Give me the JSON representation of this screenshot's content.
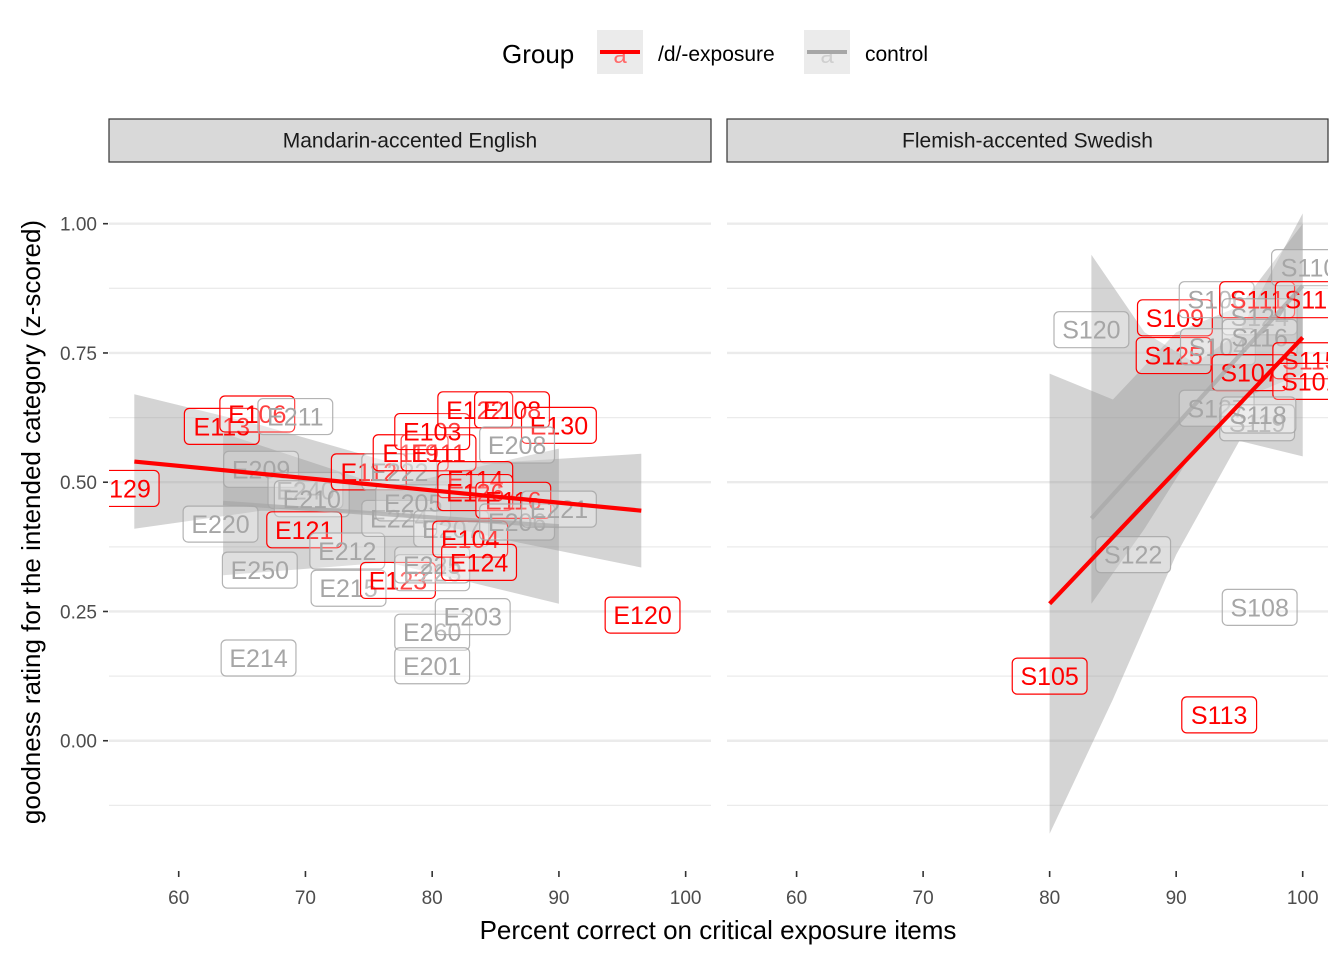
{
  "chart_data": {
    "type": "scatter",
    "xlabel": "Percent correct on critical exposure items",
    "ylabel": "goodness rating for the intended category (z-scored)",
    "legend": {
      "title": "Group",
      "placement": "top",
      "entries": [
        "/d/-exposure",
        "control"
      ],
      "glyph": "a"
    },
    "colors": {
      "/d/-exposure": "#ff0000",
      "control": "#a6a6a6"
    },
    "grid": true,
    "panels": [
      {
        "strip": "Mandarin-accented English",
        "xlim": [
          54.5,
          102
        ],
        "ylim": [
          -0.25,
          1.1
        ],
        "x_ticks": [
          60,
          70,
          80,
          90,
          100
        ],
        "y_ticks": [
          0.0,
          0.25,
          0.5,
          0.75,
          1.0
        ],
        "y_tick_labels": [
          "0.00",
          "0.25",
          "0.50",
          "0.75",
          "1.00"
        ],
        "points": [
          {
            "label": "E129",
            "x": 55.5,
            "y": 0.488,
            "group": "/d/-exposure"
          },
          {
            "label": "E113",
            "x": 63.4,
            "y": 0.608,
            "group": "/d/-exposure"
          },
          {
            "label": "E106",
            "x": 66.2,
            "y": 0.632,
            "group": "/d/-exposure"
          },
          {
            "label": "E211",
            "x": 69.2,
            "y": 0.627,
            "group": "control"
          },
          {
            "label": "E209",
            "x": 66.5,
            "y": 0.525,
            "group": "control"
          },
          {
            "label": "E240",
            "x": 70.0,
            "y": 0.484,
            "group": "control"
          },
          {
            "label": "E210",
            "x": 70.5,
            "y": 0.468,
            "group": "control"
          },
          {
            "label": "E220",
            "x": 63.3,
            "y": 0.419,
            "group": "control"
          },
          {
            "label": "E121",
            "x": 69.9,
            "y": 0.408,
            "group": "/d/-exposure"
          },
          {
            "label": "E212",
            "x": 73.3,
            "y": 0.367,
            "group": "control"
          },
          {
            "label": "E250",
            "x": 66.4,
            "y": 0.33,
            "group": "control"
          },
          {
            "label": "E215",
            "x": 73.4,
            "y": 0.295,
            "group": "control"
          },
          {
            "label": "E214",
            "x": 66.3,
            "y": 0.16,
            "group": "control"
          },
          {
            "label": "E112",
            "x": 75.0,
            "y": 0.52,
            "group": "/d/-exposure"
          },
          {
            "label": "E222",
            "x": 77.4,
            "y": 0.52,
            "group": "control"
          },
          {
            "label": "E224",
            "x": 77.4,
            "y": 0.43,
            "group": "control"
          },
          {
            "label": "E119",
            "x": 78.3,
            "y": 0.557,
            "group": "/d/-exposure"
          },
          {
            "label": "E111",
            "x": 80.5,
            "y": 0.557,
            "group": "/d/-exposure"
          },
          {
            "label": "E103",
            "x": 80.0,
            "y": 0.598,
            "group": "/d/-exposure"
          },
          {
            "label": "E205",
            "x": 78.5,
            "y": 0.46,
            "group": "control"
          },
          {
            "label": "E123",
            "x": 77.3,
            "y": 0.31,
            "group": "/d/-exposure"
          },
          {
            "label": "E223",
            "x": 80.0,
            "y": 0.325,
            "group": "control"
          },
          {
            "label": "E225",
            "x": 80.0,
            "y": 0.34,
            "group": "control"
          },
          {
            "label": "E260",
            "x": 80.0,
            "y": 0.21,
            "group": "control"
          },
          {
            "label": "E201",
            "x": 80.0,
            "y": 0.145,
            "group": "control"
          },
          {
            "label": "E207",
            "x": 81.5,
            "y": 0.41,
            "group": "control"
          },
          {
            "label": "E203",
            "x": 83.2,
            "y": 0.24,
            "group": "control"
          },
          {
            "label": "E122",
            "x": 83.4,
            "y": 0.64,
            "group": "/d/-exposure"
          },
          {
            "label": "E108",
            "x": 86.3,
            "y": 0.64,
            "group": "/d/-exposure"
          },
          {
            "label": "E130",
            "x": 90.0,
            "y": 0.61,
            "group": "/d/-exposure"
          },
          {
            "label": "E208",
            "x": 86.7,
            "y": 0.572,
            "group": "control"
          },
          {
            "label": "E114",
            "x": 83.4,
            "y": 0.505,
            "group": "/d/-exposure"
          },
          {
            "label": "E126",
            "x": 83.4,
            "y": 0.48,
            "group": "/d/-exposure"
          },
          {
            "label": "E116",
            "x": 86.4,
            "y": 0.465,
            "group": "/d/-exposure"
          },
          {
            "label": "E104",
            "x": 83.0,
            "y": 0.39,
            "group": "/d/-exposure"
          },
          {
            "label": "E124",
            "x": 83.7,
            "y": 0.345,
            "group": "/d/-exposure"
          },
          {
            "label": "E206",
            "x": 86.7,
            "y": 0.423,
            "group": "control"
          },
          {
            "label": "E221",
            "x": 90.0,
            "y": 0.448,
            "group": "control"
          },
          {
            "label": "E120",
            "x": 96.6,
            "y": 0.243,
            "group": "/d/-exposure"
          }
        ],
        "fits": [
          {
            "group": "/d/-exposure",
            "x": [
              56.5,
              96.5
            ],
            "y": [
              0.54,
              0.445
            ],
            "ci_x": [
              56.5,
              66.5,
              76.5,
              86.5,
              96.5
            ],
            "ci_lo": [
              0.41,
              0.445,
              0.44,
              0.385,
              0.335
            ],
            "ci_hi": [
              0.67,
              0.61,
              0.54,
              0.54,
              0.555
            ]
          },
          {
            "group": "control",
            "x": [
              63.5,
              90.0
            ],
            "y": [
              0.46,
              0.415
            ],
            "ci_x": [
              63.5,
              76.5,
              90.0
            ],
            "ci_lo": [
              0.32,
              0.345,
              0.265
            ],
            "ci_hi": [
              0.595,
              0.49,
              0.565
            ]
          }
        ]
      },
      {
        "strip": "Flemish-accented Swedish",
        "xlim": [
          54.5,
          102
        ],
        "ylim": [
          -0.25,
          1.1
        ],
        "x_ticks": [
          60,
          70,
          80,
          90,
          100
        ],
        "y_ticks": [
          0.0,
          0.25,
          0.5,
          0.75,
          1.0
        ],
        "points": [
          {
            "label": "S120",
            "x": 83.3,
            "y": 0.795,
            "group": "control"
          },
          {
            "label": "S109",
            "x": 89.9,
            "y": 0.818,
            "group": "/d/-exposure"
          },
          {
            "label": "S125",
            "x": 89.8,
            "y": 0.745,
            "group": "/d/-exposure"
          },
          {
            "label": "S106",
            "x": 93.2,
            "y": 0.853,
            "group": "control"
          },
          {
            "label": "S111",
            "x": 96.4,
            "y": 0.853,
            "group": "/d/-exposure"
          },
          {
            "label": "S124",
            "x": 96.6,
            "y": 0.82,
            "group": "control"
          },
          {
            "label": "S104",
            "x": 93.3,
            "y": 0.762,
            "group": "control"
          },
          {
            "label": "S116",
            "x": 96.6,
            "y": 0.78,
            "group": "control"
          },
          {
            "label": "S110",
            "x": 100.5,
            "y": 0.915,
            "group": "control"
          },
          {
            "label": "S117",
            "x": 100.8,
            "y": 0.853,
            "group": "/d/-exposure"
          },
          {
            "label": "S107",
            "x": 95.8,
            "y": 0.712,
            "group": "/d/-exposure"
          },
          {
            "label": "S115",
            "x": 100.6,
            "y": 0.735,
            "group": "/d/-exposure"
          },
          {
            "label": "S101",
            "x": 100.6,
            "y": 0.695,
            "group": "/d/-exposure"
          },
          {
            "label": "S127",
            "x": 93.2,
            "y": 0.643,
            "group": "control"
          },
          {
            "label": "S119",
            "x": 96.4,
            "y": 0.615,
            "group": "control"
          },
          {
            "label": "S118",
            "x": 96.5,
            "y": 0.63,
            "group": "control"
          },
          {
            "label": "S122",
            "x": 86.6,
            "y": 0.36,
            "group": "control"
          },
          {
            "label": "S108",
            "x": 96.6,
            "y": 0.258,
            "group": "control"
          },
          {
            "label": "S105",
            "x": 80.0,
            "y": 0.125,
            "group": "/d/-exposure"
          },
          {
            "label": "S113",
            "x": 93.4,
            "y": 0.05,
            "group": "/d/-exposure"
          }
        ],
        "fits": [
          {
            "group": "/d/-exposure",
            "x": [
              80.0,
              100.0
            ],
            "y": [
              0.265,
              0.78
            ],
            "ci_x": [
              80.0,
              85.0,
              90.0,
              95.0,
              100.0
            ],
            "ci_lo": [
              -0.18,
              0.08,
              0.36,
              0.58,
              0.55
            ],
            "ci_hi": [
              0.71,
              0.66,
              0.79,
              0.84,
              1.0
            ]
          },
          {
            "group": "control",
            "x": [
              83.3,
              100.0
            ],
            "y": [
              0.43,
              0.88
            ],
            "ci_x": [
              83.3,
              87.5,
              91.5,
              95.0,
              100.0
            ],
            "ci_lo": [
              0.265,
              0.41,
              0.565,
              0.66,
              0.71
            ],
            "ci_hi": [
              0.94,
              0.79,
              0.73,
              0.79,
              1.02
            ]
          }
        ]
      }
    ]
  }
}
